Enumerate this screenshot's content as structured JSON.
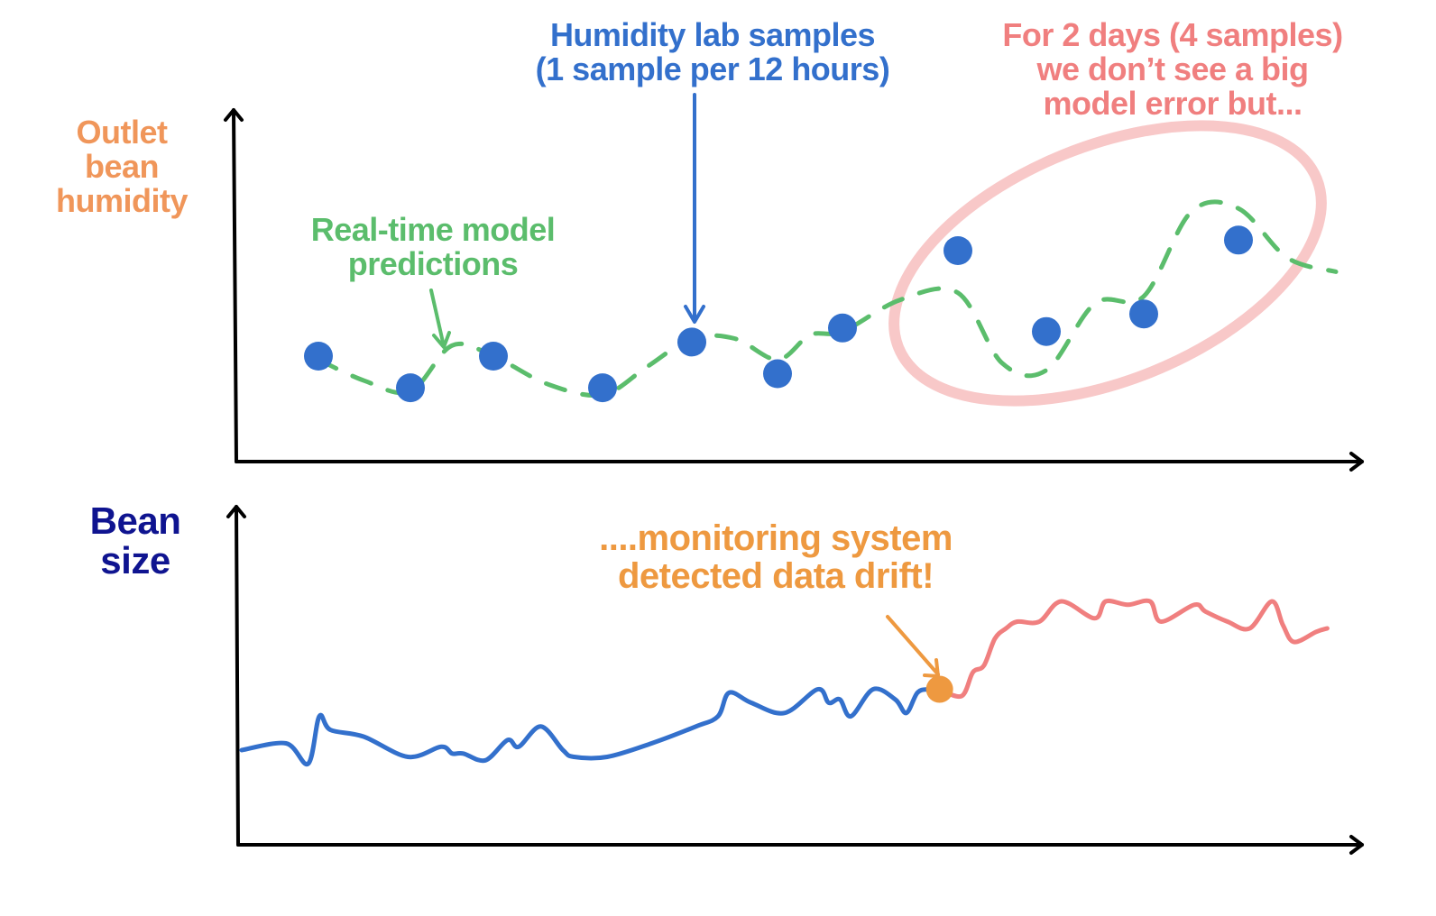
{
  "colors": {
    "axis": "#000000",
    "humidity_label": "#f0965a",
    "bean_size_label": "#0f1490",
    "lab_samples": "#3370cc",
    "predictions": "#5bbd6c",
    "error_note": "#f07f7f",
    "ellipse": "#f8c8c8",
    "drift_note": "#ee9940",
    "size_pre_drift": "#3370cc",
    "size_post_drift": "#f07f7f",
    "drift_point": "#ee9940"
  },
  "labels": {
    "top_y_axis": [
      "Outlet",
      "bean",
      "humidity"
    ],
    "bottom_y_axis": [
      "Bean",
      "size"
    ],
    "lab_samples_note": [
      "Humidity lab samples",
      "(1 sample per 12 hours)"
    ],
    "predictions_note": [
      "Real-time model",
      "predictions"
    ],
    "error_note": [
      "For 2 days (4 samples)",
      "we don’t see a big",
      "model error but..."
    ],
    "drift_note": [
      "....monitoring system",
      "detected data drift!"
    ]
  },
  "chart_data": [
    {
      "type": "scatter",
      "title": "Outlet bean humidity",
      "ylabel": "Outlet bean humidity",
      "xlabel": "",
      "xlim": [
        0,
        12
      ],
      "ylim": [
        0,
        10
      ],
      "series": [
        {
          "name": "Humidity lab samples",
          "kind": "points",
          "x": [
            1,
            2,
            3,
            4,
            5,
            6,
            7,
            8,
            9,
            10,
            11
          ],
          "y": [
            3.0,
            2.1,
            3.0,
            2.1,
            3.4,
            2.5,
            3.8,
            6.0,
            3.7,
            4.2,
            6.3
          ]
        },
        {
          "name": "Real-time model predictions",
          "kind": "dashed-line",
          "x": [
            1,
            1.5,
            2,
            2.5,
            3,
            3.5,
            4,
            4.5,
            5,
            5.5,
            6,
            6.5,
            7,
            7.5,
            8,
            8.5,
            9,
            9.5,
            10,
            10.5,
            11,
            11.5,
            12
          ],
          "y": [
            2.9,
            2.3,
            2.0,
            3.3,
            3.0,
            2.2,
            1.9,
            2.7,
            3.5,
            3.5,
            2.9,
            3.6,
            3.7,
            4.6,
            4.8,
            2.8,
            2.6,
            4.5,
            4.7,
            7.1,
            7.2,
            5.8,
            5.4
          ]
        }
      ],
      "highlight": "Last 4 samples circled (samples 8–11)",
      "grid": false
    },
    {
      "type": "line",
      "title": "Bean size",
      "ylabel": "Bean size",
      "xlabel": "",
      "xlim": [
        0,
        100
      ],
      "ylim": [
        0,
        10
      ],
      "drift_point": {
        "x": 63,
        "y": 4.6
      },
      "series": [
        {
          "name": "Bean size (before drift)",
          "x": [
            0,
            4,
            6,
            7,
            8,
            11,
            15,
            18,
            19,
            20,
            22,
            24,
            25,
            27,
            29,
            30,
            33,
            37,
            41,
            43,
            44,
            46,
            49,
            52,
            53,
            54,
            55,
            57,
            59,
            60,
            61,
            62,
            63
          ],
          "y": [
            2.8,
            3.0,
            2.4,
            3.8,
            3.4,
            3.2,
            2.6,
            2.9,
            2.7,
            2.7,
            2.5,
            3.1,
            2.9,
            3.5,
            2.8,
            2.6,
            2.6,
            3.0,
            3.5,
            3.8,
            4.5,
            4.2,
            3.9,
            4.6,
            4.2,
            4.3,
            3.8,
            4.6,
            4.3,
            3.9,
            4.5,
            4.6,
            4.6
          ]
        },
        {
          "name": "Bean size (after drift)",
          "x": [
            63,
            65,
            66,
            67,
            68,
            69,
            70,
            72,
            74,
            77,
            78,
            80,
            82,
            83,
            86,
            87,
            89,
            91,
            93,
            94,
            95,
            97,
            98
          ],
          "y": [
            4.6,
            4.4,
            5.1,
            5.3,
            6.1,
            6.4,
            6.6,
            6.6,
            7.2,
            6.7,
            7.2,
            7.1,
            7.2,
            6.6,
            7.1,
            6.9,
            6.6,
            6.4,
            7.2,
            6.5,
            6.0,
            6.3,
            6.4
          ]
        }
      ],
      "grid": false
    }
  ]
}
